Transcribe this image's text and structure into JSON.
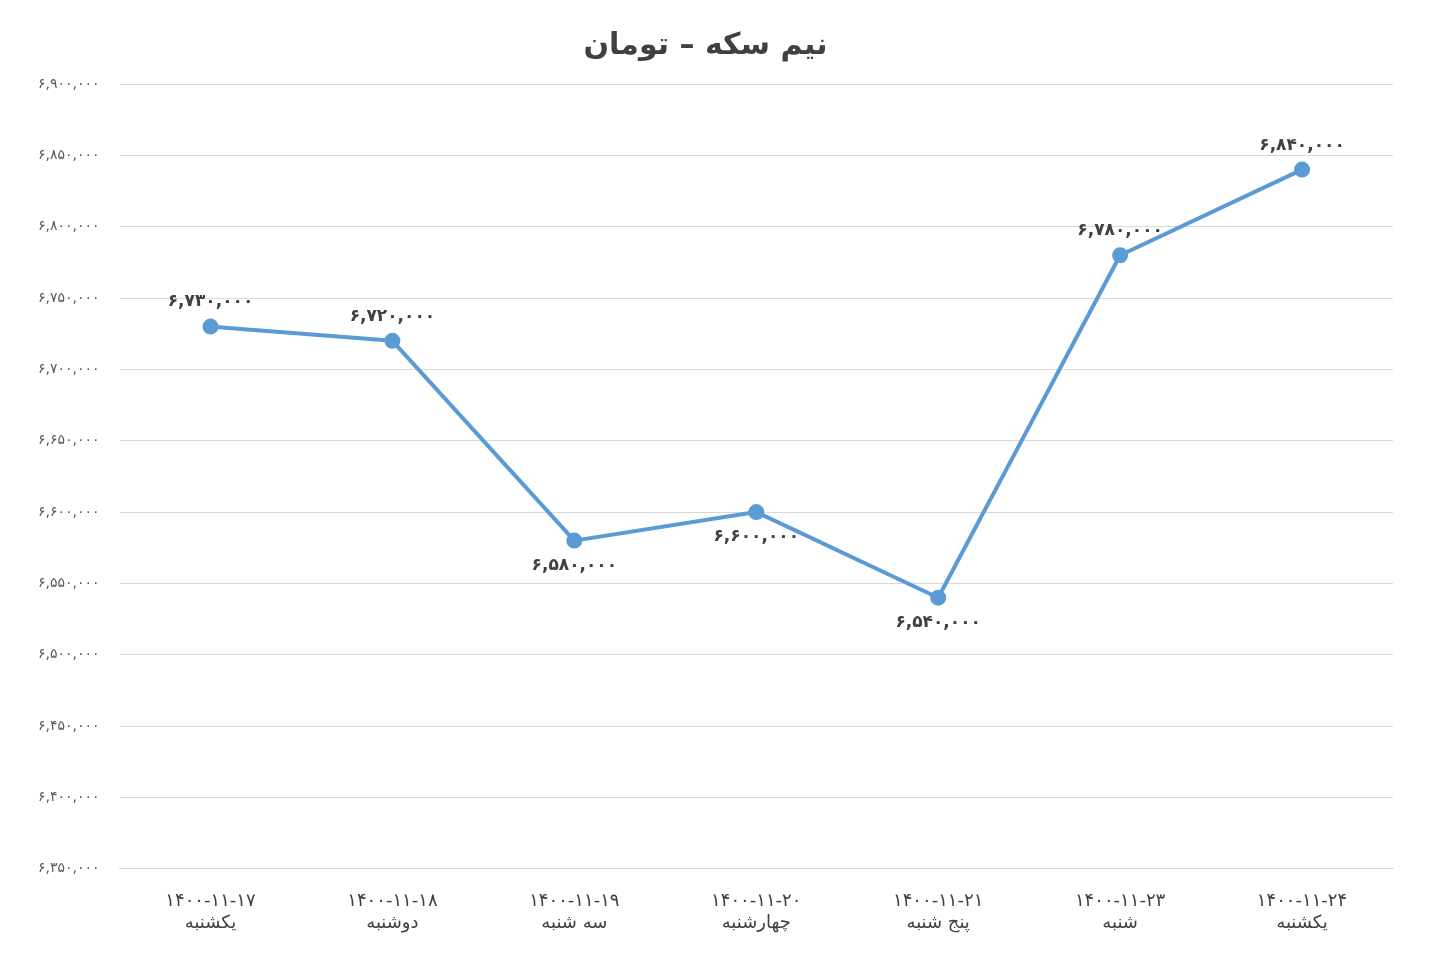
{
  "chart_data": {
    "type": "line",
    "title": "نیم سکه – تومان",
    "categories": [
      "۱۴۰۰-۱۱-۱۷\nیکشنبه",
      "۱۴۰۰-۱۱-۱۸\nدوشنبه",
      "۱۴۰۰-۱۱-۱۹\nسه شنبه",
      "۱۴۰۰-۱۱-۲۰\nچهارشنبه",
      "۱۴۰۰-۱۱-۲۱\nپنج شنبه",
      "۱۴۰۰-۱۱-۲۳\nشنبه",
      "۱۴۰۰-۱۱-۲۴\nیکشنبه"
    ],
    "values": [
      6730000,
      6720000,
      6580000,
      6600000,
      6540000,
      6780000,
      6840000
    ],
    "value_labels": [
      "۶,۷۳۰,۰۰۰",
      "۶,۷۲۰,۰۰۰",
      "۶,۵۸۰,۰۰۰",
      "۶,۶۰۰,۰۰۰",
      "۶,۵۴۰,۰۰۰",
      "۶,۷۸۰,۰۰۰",
      "۶,۸۴۰,۰۰۰"
    ],
    "color": "#5b9bd5",
    "marker": "circle",
    "line_style": "solid",
    "grid": "y",
    "legend": false,
    "ylim": [
      6350000,
      6900000
    ],
    "yticks": [
      {
        "value": 6350000,
        "label": "۶,۳۵۰,۰۰۰"
      },
      {
        "value": 6400000,
        "label": "۶,۴۰۰,۰۰۰"
      },
      {
        "value": 6450000,
        "label": "۶,۴۵۰,۰۰۰"
      },
      {
        "value": 6500000,
        "label": "۶,۵۰۰,۰۰۰"
      },
      {
        "value": 6550000,
        "label": "۶,۵۵۰,۰۰۰"
      },
      {
        "value": 6600000,
        "label": "۶,۶۰۰,۰۰۰"
      },
      {
        "value": 6650000,
        "label": "۶,۶۵۰,۰۰۰"
      },
      {
        "value": 6700000,
        "label": "۶,۷۰۰,۰۰۰"
      },
      {
        "value": 6750000,
        "label": "۶,۷۵۰,۰۰۰"
      },
      {
        "value": 6800000,
        "label": "۶,۸۰۰,۰۰۰"
      },
      {
        "value": 6850000,
        "label": "۶,۸۵۰,۰۰۰"
      },
      {
        "value": 6900000,
        "label": "۶,۹۰۰,۰۰۰"
      }
    ]
  }
}
